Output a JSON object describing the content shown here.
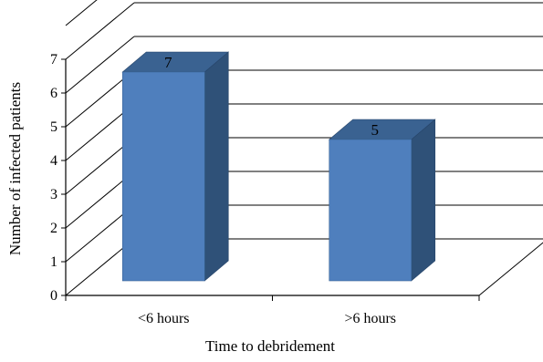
{
  "chart_data": {
    "type": "bar",
    "categories": [
      "<6 hours",
      ">6 hours"
    ],
    "values": [
      7,
      5
    ],
    "data_labels": [
      "7",
      "5"
    ],
    "xlabel": "Time to debridement",
    "ylabel": "Number of infected patients",
    "ylim": [
      0,
      7
    ],
    "yticks": [
      "0",
      "1",
      "2",
      "3",
      "4",
      "5",
      "6",
      "7"
    ],
    "grid": true,
    "legend": "none",
    "bar_color": "#4f7fbd"
  }
}
